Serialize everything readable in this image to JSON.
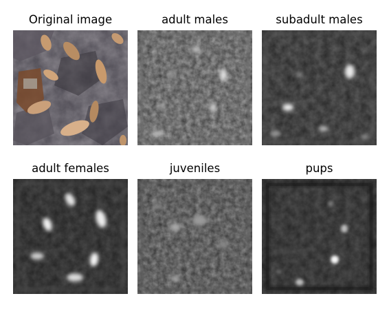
{
  "figure": {
    "panels": [
      {
        "title": "Original image",
        "kind": "photo"
      },
      {
        "title": "adult males",
        "kind": "heatmap"
      },
      {
        "title": "subadult males",
        "kind": "heatmap"
      },
      {
        "title": "adult females",
        "kind": "heatmap"
      },
      {
        "title": "juveniles",
        "kind": "heatmap"
      },
      {
        "title": "pups",
        "kind": "heatmap"
      }
    ]
  }
}
